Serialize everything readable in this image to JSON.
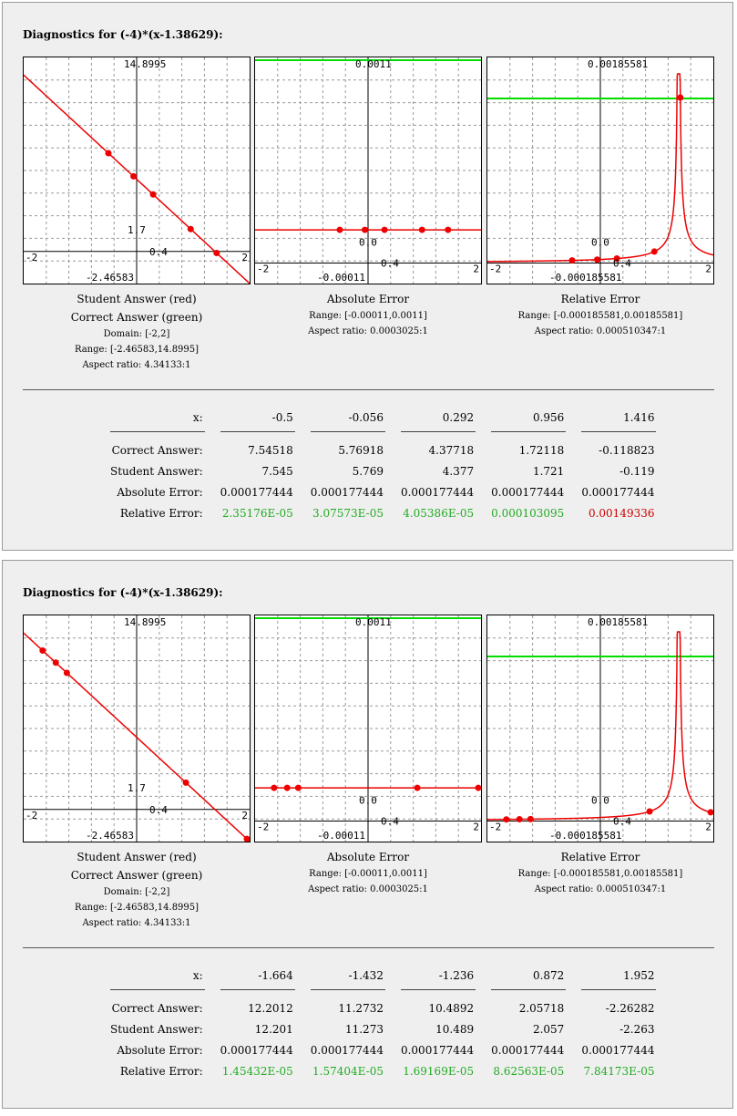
{
  "colors": {
    "student": "#ee0000",
    "correct": "#00dd00",
    "grid": "#9a9a9a",
    "rel_ok": "#22aa22",
    "rel_bad": "#cc0000"
  },
  "panels": [
    {
      "title": "Diagnostics for (-4)*(x-1.38629):",
      "plots": {
        "student": {
          "labels": {
            "ymax": "14.8995",
            "ymin": "-2.46583",
            "xmin": "-2",
            "xmax": "2",
            "xtick": "0.4",
            "ytick": "1.7"
          },
          "caption": [
            "Student Answer (red)",
            "Correct Answer (green)"
          ],
          "info": [
            "Domain: [-2,2]",
            "Range: [-2.46583,14.8995]",
            "Aspect ratio: 4.34133:1"
          ]
        },
        "abs": {
          "labels": {
            "ymax": "0.0011",
            "ymin": "-0.00011",
            "xmin": "-2",
            "xmax": "2",
            "xtick": "0.4",
            "ytick": "0.0"
          },
          "caption": [
            "Absolute Error"
          ],
          "info": [
            "Range: [-0.00011,0.0011]",
            "Aspect ratio: 0.0003025:1"
          ]
        },
        "rel": {
          "labels": {
            "ymax": "0.00185581",
            "ymin": "-0.000185581",
            "xmin": "-2",
            "xmax": "2",
            "xtick": "0.4",
            "ytick": "0.0"
          },
          "caption": [
            "Relative Error"
          ],
          "info": [
            "Range: [-0.000185581,0.00185581]",
            "Aspect ratio: 0.000510347:1"
          ]
        }
      },
      "table": {
        "x_label": "x:",
        "x": [
          "-0.5",
          "-0.056",
          "0.292",
          "0.956",
          "1.416"
        ],
        "rows": [
          {
            "label": "Correct Answer:",
            "values": [
              "7.54518",
              "5.76918",
              "4.37718",
              "1.72118",
              "-0.118823"
            ]
          },
          {
            "label": "Student Answer:",
            "values": [
              "7.545",
              "5.769",
              "4.377",
              "1.721",
              "-0.119"
            ]
          },
          {
            "label": "Absolute Error:",
            "values": [
              "0.000177444",
              "0.000177444",
              "0.000177444",
              "0.000177444",
              "0.000177444"
            ]
          },
          {
            "label": "Relative Error:",
            "values": [
              "2.35176E-05",
              "3.07573E-05",
              "4.05386E-05",
              "0.000103095",
              "0.00149336"
            ],
            "status": [
              "ok",
              "ok",
              "ok",
              "ok",
              "bad"
            ]
          }
        ]
      }
    },
    {
      "title": "Diagnostics for (-4)*(x-1.38629):",
      "plots": {
        "student": {
          "labels": {
            "ymax": "14.8995",
            "ymin": "-2.46583",
            "xmin": "-2",
            "xmax": "2",
            "xtick": "0.4",
            "ytick": "1.7"
          },
          "caption": [
            "Student Answer (red)",
            "Correct Answer (green)"
          ],
          "info": [
            "Domain: [-2,2]",
            "Range: [-2.46583,14.8995]",
            "Aspect ratio: 4.34133:1"
          ]
        },
        "abs": {
          "labels": {
            "ymax": "0.0011",
            "ymin": "-0.00011",
            "xmin": "-2",
            "xmax": "2",
            "xtick": "0.4",
            "ytick": "0.0"
          },
          "caption": [
            "Absolute Error"
          ],
          "info": [
            "Range: [-0.00011,0.0011]",
            "Aspect ratio: 0.0003025:1"
          ]
        },
        "rel": {
          "labels": {
            "ymax": "0.00185581",
            "ymin": "-0.000185581",
            "xmin": "-2",
            "xmax": "2",
            "xtick": "0.4",
            "ytick": "0.0"
          },
          "caption": [
            "Relative Error"
          ],
          "info": [
            "Range: [-0.000185581,0.00185581]",
            "Aspect ratio: 0.000510347:1"
          ]
        }
      },
      "table": {
        "x_label": "x:",
        "x": [
          "-1.664",
          "-1.432",
          "-1.236",
          "0.872",
          "1.952"
        ],
        "rows": [
          {
            "label": "Correct Answer:",
            "values": [
              "12.2012",
              "11.2732",
              "10.4892",
              "2.05718",
              "-2.26282"
            ]
          },
          {
            "label": "Student Answer:",
            "values": [
              "12.201",
              "11.273",
              "10.489",
              "2.057",
              "-2.263"
            ]
          },
          {
            "label": "Absolute Error:",
            "values": [
              "0.000177444",
              "0.000177444",
              "0.000177444",
              "0.000177444",
              "0.000177444"
            ]
          },
          {
            "label": "Relative Error:",
            "values": [
              "1.45432E-05",
              "1.57404E-05",
              "1.69169E-05",
              "8.62563E-05",
              "7.84173E-05"
            ],
            "status": [
              "ok",
              "ok",
              "ok",
              "ok",
              "ok"
            ]
          }
        ]
      }
    }
  ],
  "chart_data": [
    {
      "type": "line",
      "panel": 1,
      "plot": "student",
      "xlim": [
        -2,
        2
      ],
      "ylim": [
        -2.46583,
        14.8995
      ],
      "series": [
        {
          "function": "-4*(x-1.38629)"
        },
        {
          "points": {
            "x": [
              -0.5,
              -0.056,
              0.292,
              0.956,
              1.416
            ],
            "y": [
              7.545,
              5.769,
              4.377,
              1.721,
              -0.119
            ]
          }
        }
      ]
    },
    {
      "type": "line",
      "panel": 1,
      "plot": "abs",
      "xlim": [
        -2,
        2
      ],
      "ylim": [
        -0.00011,
        0.0011
      ],
      "series": [
        {
          "constant": 0.0011
        },
        {
          "constant": 0.000177444,
          "points": {
            "x": [
              -0.5,
              -0.056,
              0.292,
              0.956,
              1.416
            ],
            "y": [
              0.000177444,
              0.000177444,
              0.000177444,
              0.000177444,
              0.000177444
            ]
          }
        }
      ]
    },
    {
      "type": "line",
      "panel": 1,
      "plot": "rel",
      "xlim": [
        -2,
        2
      ],
      "ylim": [
        -0.000185581,
        0.00185581
      ],
      "series": [
        {
          "constant": 0.001485
        },
        {
          "function": "0.000177444/|-4*(x-1.38629)|",
          "points": {
            "x": [
              -0.5,
              -0.056,
              0.292,
              0.956,
              1.416
            ],
            "y": [
              2.35176e-05,
              3.07573e-05,
              4.05386e-05,
              0.000103095,
              0.00149336
            ]
          }
        }
      ]
    },
    {
      "type": "line",
      "panel": 2,
      "plot": "student",
      "xlim": [
        -2,
        2
      ],
      "ylim": [
        -2.46583,
        14.8995
      ],
      "series": [
        {
          "function": "-4*(x-1.38629)"
        },
        {
          "points": {
            "x": [
              -1.664,
              -1.432,
              -1.236,
              0.872,
              1.952
            ],
            "y": [
              12.201,
              11.273,
              10.489,
              2.057,
              -2.263
            ]
          }
        }
      ]
    },
    {
      "type": "line",
      "panel": 2,
      "plot": "abs",
      "xlim": [
        -2,
        2
      ],
      "ylim": [
        -0.00011,
        0.0011
      ],
      "series": [
        {
          "constant": 0.0011
        },
        {
          "constant": 0.000177444,
          "points": {
            "x": [
              -1.664,
              -1.432,
              -1.236,
              0.872,
              1.952
            ],
            "y": [
              0.000177444,
              0.000177444,
              0.000177444,
              0.000177444,
              0.000177444
            ]
          }
        }
      ]
    },
    {
      "type": "line",
      "panel": 2,
      "plot": "rel",
      "xlim": [
        -2,
        2
      ],
      "ylim": [
        -0.000185581,
        0.00185581
      ],
      "series": [
        {
          "constant": 0.001485
        },
        {
          "function": "0.000177444/|-4*(x-1.38629)|",
          "points": {
            "x": [
              -1.664,
              -1.432,
              -1.236,
              0.872,
              1.952
            ],
            "y": [
              1.45432e-05,
              1.57404e-05,
              1.69169e-05,
              8.62563e-05,
              7.84173e-05
            ]
          }
        }
      ]
    }
  ]
}
